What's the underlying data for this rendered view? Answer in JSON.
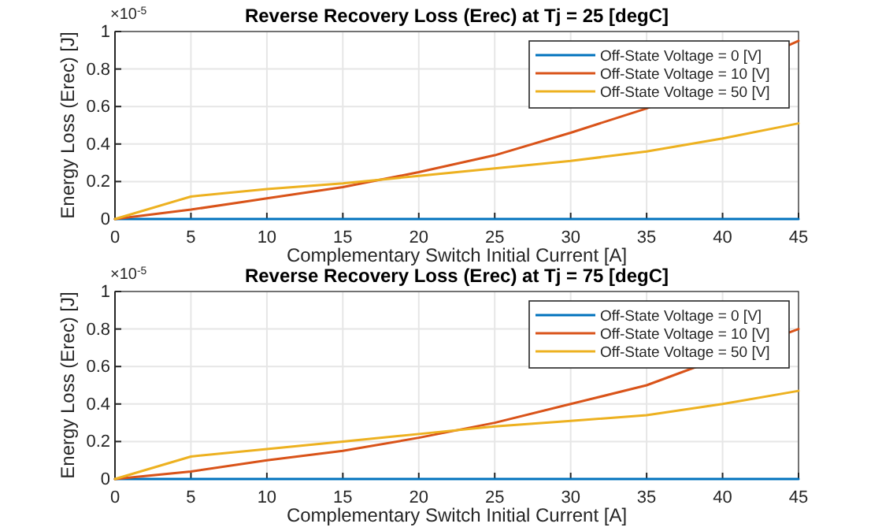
{
  "chart_data": [
    {
      "type": "line",
      "title": "Reverse Recovery Loss (Erec) at Tj = 25 [degC]",
      "xlabel": "Complementary Switch Initial Current [A]",
      "ylabel": "Energy Loss (Erec) [J]",
      "annotations": [
        "×10$^{-5}$"
      ],
      "x": [
        0,
        5,
        10,
        15,
        20,
        25,
        30,
        35,
        40,
        45
      ],
      "series": [
        {
          "name": "Off-State Voltage = 0 [V]",
          "color": "#0072bd",
          "values": [
            0,
            0,
            0,
            0,
            0,
            0,
            0,
            0,
            0,
            0
          ]
        },
        {
          "name": "Off-State Voltage = 10 [V]",
          "color": "#d95319",
          "values": [
            0,
            0.05,
            0.11,
            0.17,
            0.25,
            0.34,
            0.46,
            0.59,
            null,
            0.95
          ]
        },
        {
          "name": "Off-State Voltage = 50 [V]",
          "color": "#edb120",
          "values": [
            0,
            0.12,
            0.16,
            0.19,
            0.23,
            0.27,
            0.31,
            0.36,
            0.43,
            0.51
          ]
        }
      ],
      "xlim": [
        0,
        45
      ],
      "xticks": [
        0,
        5,
        10,
        15,
        20,
        25,
        30,
        35,
        40,
        45
      ],
      "ylim": [
        0,
        1
      ],
      "yticks": [
        0,
        0.2,
        0.4,
        0.6,
        0.8,
        1
      ],
      "grid": true,
      "legend": "top right"
    },
    {
      "type": "line",
      "title": "Reverse Recovery Loss (Erec) at Tj = 75 [degC]",
      "xlabel": "Complementary Switch Initial Current [A]",
      "ylabel": "Energy Loss (Erec) [J]",
      "annotations": [
        "×10$^{-5}$"
      ],
      "x": [
        0,
        5,
        10,
        15,
        20,
        25,
        30,
        35,
        40,
        45
      ],
      "series": [
        {
          "name": "Off-State Voltage = 0 [V]",
          "color": "#0072bd",
          "values": [
            0,
            0,
            0,
            0,
            0,
            0,
            0,
            0,
            0,
            0
          ]
        },
        {
          "name": "Off-State Voltage = 10 [V]",
          "color": "#d95319",
          "values": [
            0,
            0.04,
            0.1,
            0.15,
            0.22,
            0.3,
            0.4,
            0.5,
            null,
            0.8
          ]
        },
        {
          "name": "Off-State Voltage = 50 [V]",
          "color": "#edb120",
          "values": [
            0,
            0.12,
            0.16,
            0.2,
            0.24,
            0.28,
            0.31,
            0.34,
            0.4,
            0.47
          ]
        }
      ],
      "xlim": [
        0,
        45
      ],
      "xticks": [
        0,
        5,
        10,
        15,
        20,
        25,
        30,
        35,
        40,
        45
      ],
      "ylim": [
        0,
        1
      ],
      "yticks": [
        0,
        0.2,
        0.4,
        0.6,
        0.8,
        1
      ],
      "grid": true,
      "legend": "top right"
    }
  ]
}
